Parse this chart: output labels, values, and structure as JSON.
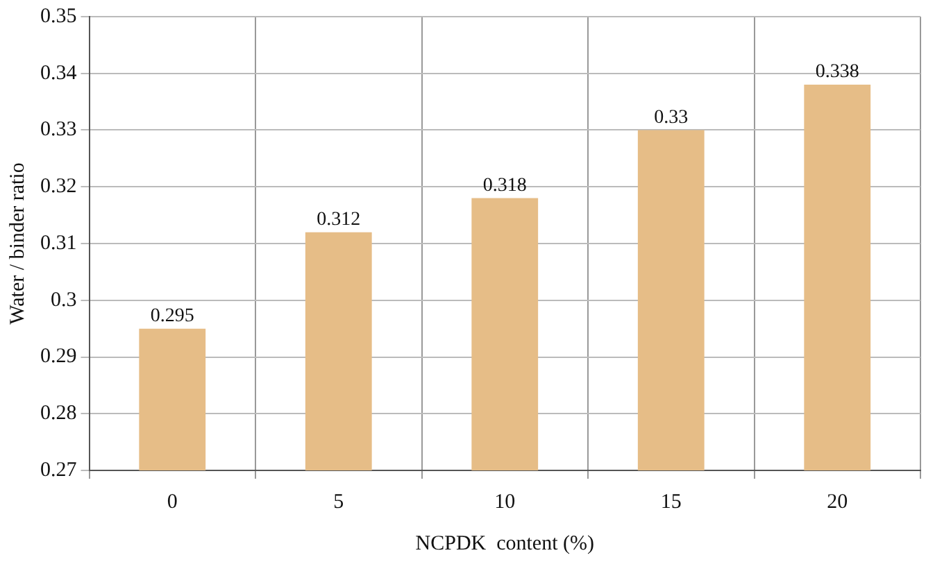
{
  "chart_data": {
    "type": "bar",
    "xlabel": "NCPDK  content (%)",
    "ylabel": "Water / binder ratio",
    "categories": [
      "0",
      "5",
      "10",
      "15",
      "20"
    ],
    "values": [
      0.295,
      0.312,
      0.318,
      0.33,
      0.338
    ],
    "color": "#e6bd87",
    "ylim": [
      0.27,
      0.35
    ],
    "yticks": [
      0.27,
      0.28,
      0.29,
      0.3,
      0.31,
      0.32,
      0.33,
      0.34,
      0.35
    ],
    "grid": true,
    "data_labels": true
  }
}
